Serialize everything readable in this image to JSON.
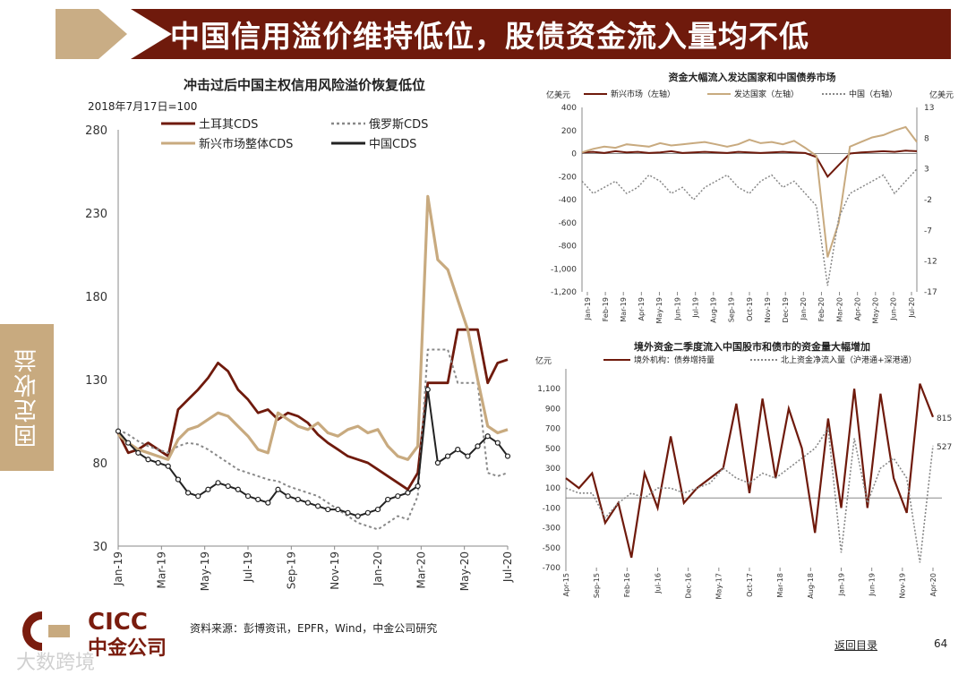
{
  "header": {
    "title": "中国信用溢价维持低位，股债资金流入量均不低"
  },
  "sidebar": {
    "tab_label": "固定收益"
  },
  "footer": {
    "source": "资料来源：彭博资讯，EPFR，Wind，中金公司研究",
    "back_link": "返回目录",
    "page_number": "64",
    "logo_text": "CICC",
    "logo_cn": "中金公司",
    "watermark": "大数跨境"
  },
  "colors": {
    "brown": "#6f1a0c",
    "tan": "#c8aa7f",
    "gray": "#888888",
    "black": "#222222"
  },
  "chart_data": [
    {
      "type": "line",
      "title": "冲击过后中国主权信用风险溢价恢复低位",
      "subtitle": "2018年7月17日=100",
      "ylim": [
        30,
        280
      ],
      "yticks": [
        "280",
        "230",
        "180",
        "130",
        "80",
        "30"
      ],
      "x_ticks": [
        "Jan-19",
        "Mar-19",
        "May-19",
        "Jul-19",
        "Sep-19",
        "Nov-19",
        "Jan-20",
        "Mar-20",
        "May-20",
        "Jul-20"
      ],
      "series": [
        {
          "name": "土耳其CDS",
          "style": "solid",
          "color": "#6f1a0c",
          "values": [
            98,
            86,
            88,
            92,
            88,
            84,
            112,
            118,
            124,
            131,
            140,
            135,
            124,
            118,
            110,
            112,
            106,
            110,
            108,
            104,
            97,
            92,
            88,
            84,
            82,
            80,
            76,
            72,
            68,
            64,
            74,
            128,
            128,
            128,
            160,
            160,
            160,
            128,
            140,
            142
          ]
        },
        {
          "name": "俄罗斯CDS",
          "style": "dotted",
          "color": "#888888",
          "values": [
            100,
            97,
            93,
            90,
            88,
            86,
            90,
            92,
            91,
            88,
            84,
            80,
            76,
            74,
            72,
            70,
            69,
            66,
            64,
            62,
            60,
            56,
            52,
            48,
            44,
            42,
            40,
            44,
            48,
            46,
            60,
            148,
            148,
            148,
            128,
            128,
            128,
            74,
            72,
            74
          ]
        },
        {
          "name": "新兴市场整体CDS",
          "style": "solid",
          "color": "#c8aa7f",
          "values": [
            97,
            92,
            88,
            86,
            84,
            82,
            94,
            100,
            102,
            106,
            110,
            108,
            102,
            96,
            88,
            86,
            110,
            106,
            102,
            100,
            104,
            98,
            96,
            100,
            102,
            98,
            100,
            90,
            84,
            82,
            90,
            240,
            202,
            196,
            178,
            160,
            130,
            102,
            98,
            100
          ]
        },
        {
          "name": "中国CDS",
          "style": "solid-marker",
          "color": "#222222",
          "values": [
            99,
            92,
            86,
            82,
            80,
            78,
            70,
            62,
            60,
            64,
            68,
            66,
            64,
            60,
            58,
            56,
            64,
            60,
            58,
            56,
            54,
            52,
            52,
            50,
            48,
            50,
            52,
            58,
            60,
            62,
            66,
            124,
            80,
            84,
            88,
            84,
            90,
            96,
            92,
            84
          ]
        }
      ]
    },
    {
      "type": "line",
      "title": "资金大幅流入发达国家和中国债券市场",
      "left_unit": "亿美元",
      "right_unit": "亿美元",
      "ylim_left": [
        -1200,
        400
      ],
      "ylim_right": [
        -17,
        13
      ],
      "left_ticks": [
        "400",
        "200",
        "0",
        "-200",
        "-400",
        "-600",
        "-800",
        "-1,000",
        "-1,200"
      ],
      "right_ticks": [
        "13",
        "8",
        "3",
        "-2",
        "-7",
        "-12",
        "-17"
      ],
      "x_ticks": [
        "Jan-19",
        "Feb-19",
        "Mar-19",
        "Apr-19",
        "May-19",
        "Jun-19",
        "Jul-19",
        "Aug-19",
        "Sep-19",
        "Oct-19",
        "Nov-19",
        "Dec-19",
        "Jan-20",
        "Feb-20",
        "Mar-20",
        "Apr-20",
        "May-20",
        "Jun-20",
        "Jul-20"
      ],
      "series": [
        {
          "name": "新兴市场（左轴）",
          "axis": "left",
          "color": "#6f1a0c",
          "values": [
            10,
            15,
            5,
            20,
            10,
            15,
            5,
            10,
            20,
            5,
            10,
            15,
            10,
            5,
            15,
            10,
            5,
            10,
            15,
            10,
            5,
            -30,
            -200,
            -100,
            0,
            10,
            15,
            20,
            15,
            25,
            20
          ]
        },
        {
          "name": "发达国家（左轴）",
          "axis": "left",
          "color": "#c8aa7f",
          "values": [
            10,
            40,
            60,
            50,
            80,
            70,
            60,
            90,
            70,
            80,
            90,
            100,
            80,
            60,
            80,
            120,
            90,
            100,
            80,
            110,
            50,
            -20,
            -900,
            -600,
            60,
            100,
            140,
            160,
            200,
            230,
            100
          ]
        },
        {
          "name": "中国（右轴）",
          "axis": "right",
          "color": "#888888",
          "values": [
            1,
            -1,
            0,
            1,
            -1,
            0,
            2,
            1,
            -1,
            0,
            -2,
            0,
            1,
            2,
            0,
            -1,
            1,
            2,
            0,
            1,
            -1,
            -3,
            -16,
            -5,
            -1,
            0,
            1,
            2,
            -1,
            1,
            3
          ]
        }
      ]
    },
    {
      "type": "line",
      "title": "境外资金二季度流入中国股市和债市的资金量大幅增加",
      "left_unit": "亿元",
      "ylim": [
        -700,
        1300
      ],
      "yticks": [
        "1,100",
        "900",
        "700",
        "500",
        "300",
        "100",
        "-100",
        "-300",
        "-500",
        "-700"
      ],
      "x_ticks": [
        "Apr-15",
        "Sep-15",
        "Feb-16",
        "Jul-16",
        "Dec-16",
        "May-17",
        "Oct-17",
        "Mar-18",
        "Aug-18",
        "Jan-19",
        "Jun-19",
        "Nov-19",
        "Apr-20"
      ],
      "series": [
        {
          "name": "境外机构：债券增持量",
          "color": "#6f1a0c",
          "values": [
            200,
            100,
            250,
            -250,
            -50,
            -600,
            250,
            -100,
            620,
            -50,
            100,
            200,
            300,
            950,
            50,
            1000,
            200,
            900,
            500,
            -350,
            800,
            -100,
            1100,
            -100,
            1050,
            200,
            -150,
            1150,
            815
          ],
          "end_label": "815"
        },
        {
          "name": "北上资金净流入量（沪港通+深港通）",
          "color": "#888888",
          "values": [
            100,
            50,
            50,
            -200,
            -50,
            50,
            0,
            100,
            100,
            50,
            100,
            150,
            300,
            200,
            150,
            250,
            200,
            300,
            400,
            500,
            700,
            -550,
            600,
            -50,
            300,
            400,
            200,
            -650,
            527
          ],
          "end_label": "527"
        }
      ]
    }
  ]
}
